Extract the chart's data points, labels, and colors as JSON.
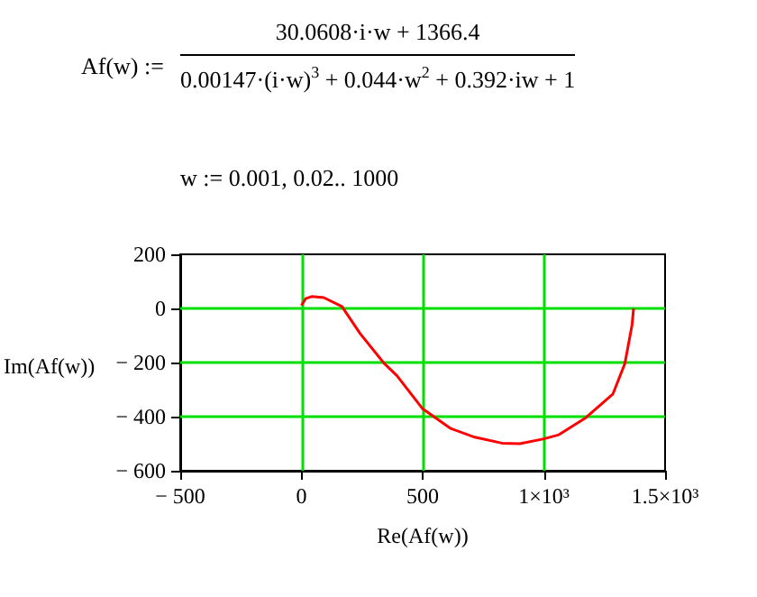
{
  "chart_data": {
    "type": "line",
    "annotations": [
      "Af(w) :=",
      "30.0608·i·w + 1366.4",
      "0.00147·(i·w)$^{3}$ + 0.044·w$^{2}$ + 0.392·iw + 1",
      "w := 0.001, 0.02.. 1000"
    ],
    "xlabel": "Re(Af(w))",
    "ylabel": "Im(Af(w))",
    "x": [
      1370,
      1364,
      1334,
      1285,
      1173,
      1062,
      1000,
      901,
      827,
      715,
      616,
      500,
      394,
      342,
      242,
      167,
      92,
      42,
      17,
      0
    ],
    "series": [
      {
        "color": "#ff0000",
        "values": [
          0,
          -60,
          -204,
          -316,
          -404,
          -467,
          -482,
          -500,
          -498,
          -476,
          -444,
          -371,
          -249,
          -204,
          -93,
          7,
          40,
          44,
          36,
          11
        ]
      }
    ],
    "xlim": [
      -500,
      1500
    ],
    "ylim": [
      -600,
      200
    ],
    "xticks": [
      {
        "value": -500,
        "label": "− 500"
      },
      0,
      500,
      {
        "value": 1000,
        "label": "1×10³"
      },
      {
        "value": 1500,
        "label": "1.5×10³"
      }
    ],
    "yticks": [
      {
        "value": -600,
        "label": "− 600"
      },
      {
        "value": -400,
        "label": "− 400"
      },
      {
        "value": -200,
        "label": "− 200"
      },
      0,
      200
    ],
    "grid": true
  }
}
